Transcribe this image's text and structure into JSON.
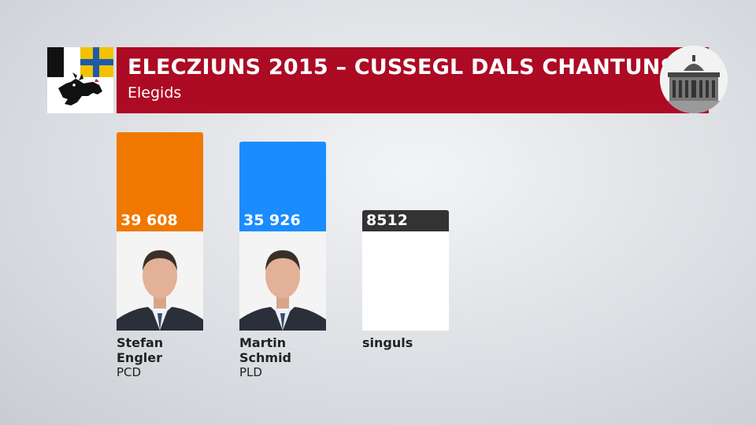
{
  "header": {
    "title": "ELECZIUNS 2015 – CUSSEGL DALS CHANTUNS",
    "subtitle": "Elegids"
  },
  "colors": {
    "banner": "#ad0a24",
    "pcd": "#f07800",
    "pld": "#1a8cff",
    "singuls": "#333333"
  },
  "icons": {
    "coat_of_arms": "graubuenden-coat-of-arms-icon",
    "parliament": "federal-palace-icon"
  },
  "chart_data": {
    "type": "bar",
    "title": "ELECZIUNS 2015 – CUSSEGL DALS CHANTUNS",
    "subtitle": "Elegids",
    "ylim": [
      0,
      40000
    ],
    "bars": [
      {
        "first_name": "Stefan",
        "last_name": "Engler",
        "party": "PCD",
        "value": 39608,
        "value_label": "39 608",
        "color": "#f07800",
        "photo": true
      },
      {
        "first_name": "Martin",
        "last_name": "Schmid",
        "party": "PLD",
        "value": 35926,
        "value_label": "35 926",
        "color": "#1a8cff",
        "photo": true
      },
      {
        "first_name": "singuls",
        "last_name": "",
        "party": "",
        "value": 8512,
        "value_label": "8512",
        "color": "#333333",
        "photo": false
      }
    ]
  }
}
